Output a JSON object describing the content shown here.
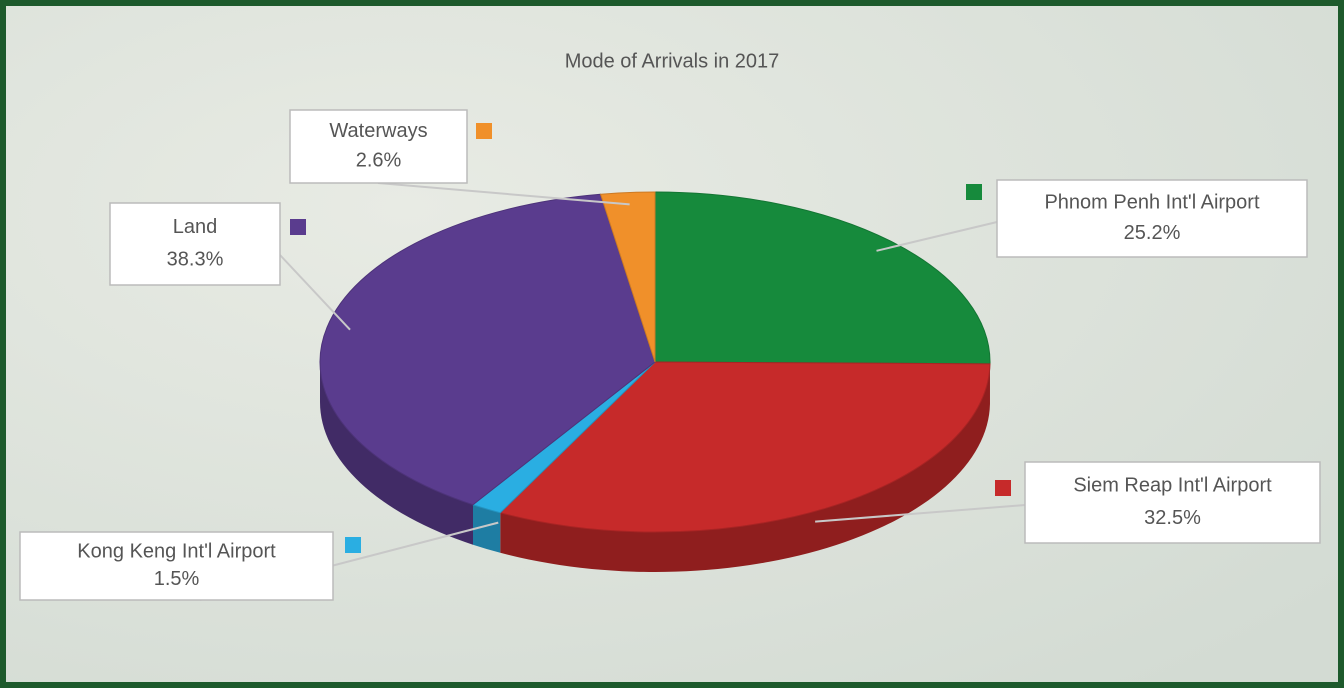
{
  "chart_data": {
    "type": "pie3d",
    "title": "Mode of Arrivals in 2017",
    "categories": [
      "Phnom Penh Int'l Airport",
      "Siem Reap Int'l Airport",
      "Kong Keng Int'l Airport",
      "Land",
      "Waterways"
    ],
    "values": [
      25.2,
      32.5,
      1.5,
      38.3,
      2.6
    ],
    "value_labels": [
      "25.2%",
      "32.5%",
      "1.5%",
      "38.3%",
      "2.6%"
    ],
    "colors": [
      "#168a3c",
      "#c62a2a",
      "#2aaee2",
      "#5a3c8e",
      "#f0902a"
    ]
  }
}
